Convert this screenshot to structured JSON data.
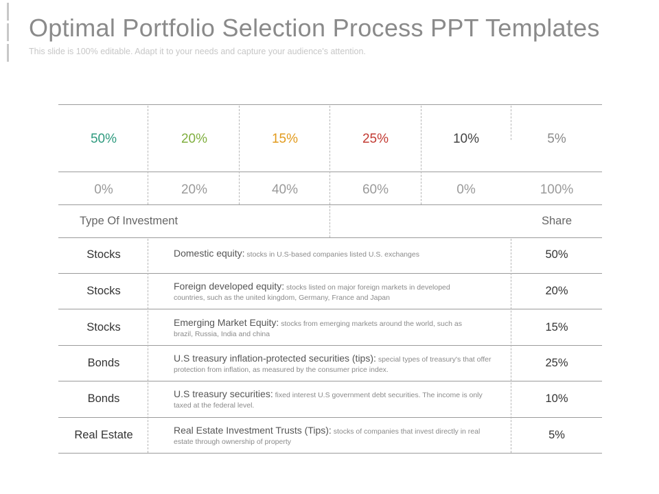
{
  "header": {
    "title": "Optimal Portfolio Selection Process PPT Templates",
    "subtitle": "This slide is 100% editable. Adapt it to your needs and capture your audience's attention."
  },
  "top_row": [
    {
      "value": "50%",
      "color": "#2e9a7e"
    },
    {
      "value": "20%",
      "color": "#7fae3e"
    },
    {
      "value": "15%",
      "color": "#e29a1c"
    },
    {
      "value": "25%",
      "color": "#c23a32"
    },
    {
      "value": "10%",
      "color": "#444444"
    },
    {
      "value": "5%",
      "color": "#8a8a8a"
    }
  ],
  "second_row": [
    "0%",
    "20%",
    "40%",
    "60%",
    "0%",
    "100%"
  ],
  "table_header": {
    "type_label": "Type Of Investment",
    "share_label": "Share"
  },
  "rows": [
    {
      "type": "Stocks",
      "lead": "Domestic equity:",
      "detail": "stocks in U.S-based companies listed U.S. exchanges",
      "share": "50%"
    },
    {
      "type": "Stocks",
      "lead": "Foreign developed equity:",
      "detail": "stocks listed on major foreign markets in developed countries, such as the united kingdom, Germany, France and Japan",
      "share": "20%"
    },
    {
      "type": "Stocks",
      "lead": "Emerging Market Equity:",
      "detail": "stocks from emerging markets around the world, such as brazil, Russia, India and china",
      "share": "15%"
    },
    {
      "type": "Bonds",
      "lead": "U.S treasury inflation-protected securities (tips):",
      "detail": "special types of treasury's that offer protection from inflation, as measured by the consumer price index.",
      "share": "25%"
    },
    {
      "type": "Bonds",
      "lead": "U.S treasury securities:",
      "detail": "fixed interest U.S government debt securities. The income is only taxed at the federal level.",
      "share": "10%"
    },
    {
      "type": "Real Estate",
      "lead": "Real Estate Investment Trusts (Tips):",
      "detail": "stocks of companies that invest directly in real estate through ownership of property",
      "share": "5%"
    }
  ]
}
